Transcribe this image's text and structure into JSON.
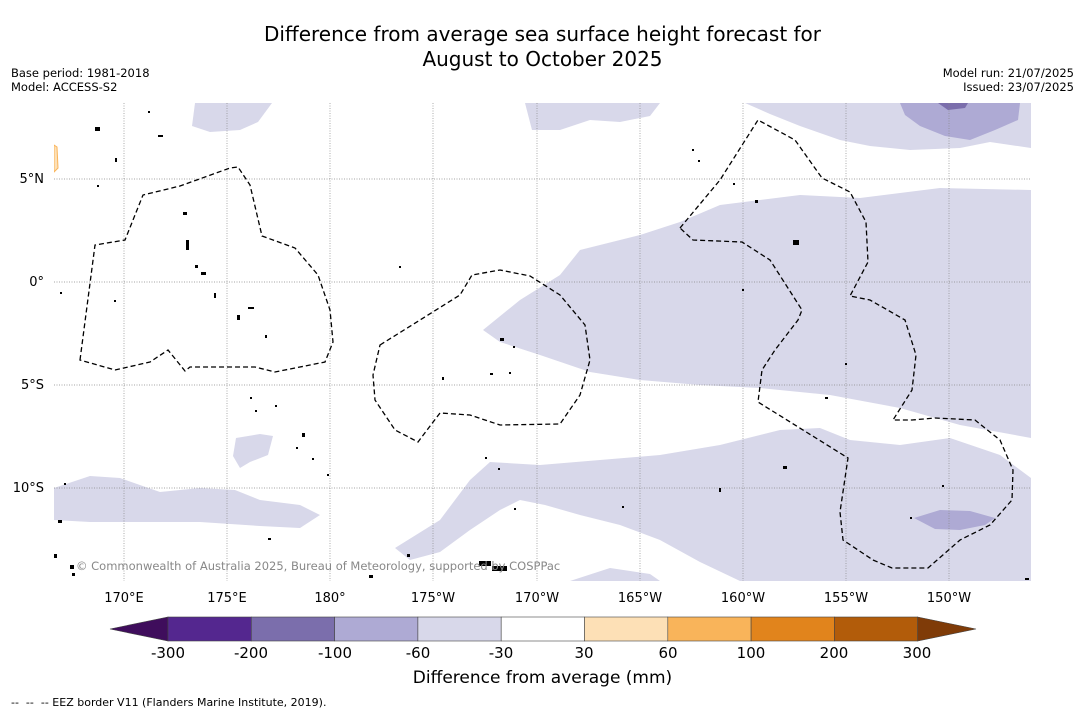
{
  "title": {
    "line1": "Difference from average sea surface height forecast for",
    "line2": "August to October 2025"
  },
  "meta_left": {
    "base_period": "Base period: 1981-2018",
    "model": "Model: ACCESS-S2"
  },
  "meta_right": {
    "model_run": "Model run: 21/07/2025",
    "issued": "Issued: 23/07/2025"
  },
  "map": {
    "lat_labels": [
      "5°N",
      "0°",
      "5°S",
      "10°S"
    ],
    "lon_labels": [
      "170°E",
      "175°E",
      "180°",
      "175°W",
      "170°W",
      "165°W",
      "160°W",
      "155°W",
      "150°W"
    ],
    "copyright": "© Commonwealth of Australia 2025, Bureau of Meteorology, supported by COSPPac"
  },
  "colorbar": {
    "ticks": [
      "-300",
      "-200",
      "-100",
      "-60",
      "-30",
      "30",
      "60",
      "100",
      "200",
      "300"
    ],
    "colors": [
      "#3f0d5c",
      "#54278f",
      "#7b6eac",
      "#aeaad4",
      "#d8d8ea",
      "#ffffff",
      "#fde0b6",
      "#f9b45a",
      "#e1841c",
      "#b25c0a",
      "#7f3b08"
    ],
    "label": "Difference from average (mm)"
  },
  "footnote": "--  --  -- EEZ border V11 (Flanders Marine Institute, 2019)."
}
